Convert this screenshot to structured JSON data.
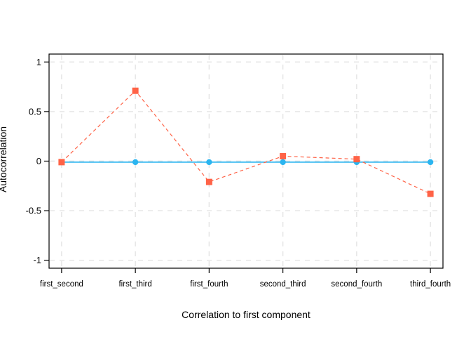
{
  "chart_data": {
    "type": "line",
    "title": "",
    "xlabel": "Correlation to first component",
    "ylabel": "Autocorrelation",
    "categories": [
      "first_second",
      "first_third",
      "first_fourth",
      "second_third",
      "second_fourth",
      "third_fourth"
    ],
    "series": [
      {
        "name": "blue_circles_solid",
        "color": "#2BB5F0",
        "marker": "circle",
        "line_style": "solid",
        "values": [
          -0.01,
          -0.01,
          -0.01,
          -0.01,
          -0.01,
          -0.01
        ]
      },
      {
        "name": "red_squares_dashed",
        "color": "#FF6347",
        "marker": "square",
        "line_style": "dashed",
        "values": [
          -0.01,
          0.71,
          -0.21,
          0.05,
          0.02,
          -0.33
        ]
      }
    ],
    "yticks": [
      -1,
      -0.5,
      0,
      0.5,
      1
    ],
    "ytick_labels": [
      "-1",
      "-0.5",
      "0",
      "0.5",
      "1"
    ],
    "ylim": [
      -1.08,
      1.08
    ],
    "xlim": [
      0.83,
      6.17
    ],
    "grid": "dashed",
    "grid_color": "#E4E4E4",
    "box_color": "#000000",
    "legend": "none"
  }
}
